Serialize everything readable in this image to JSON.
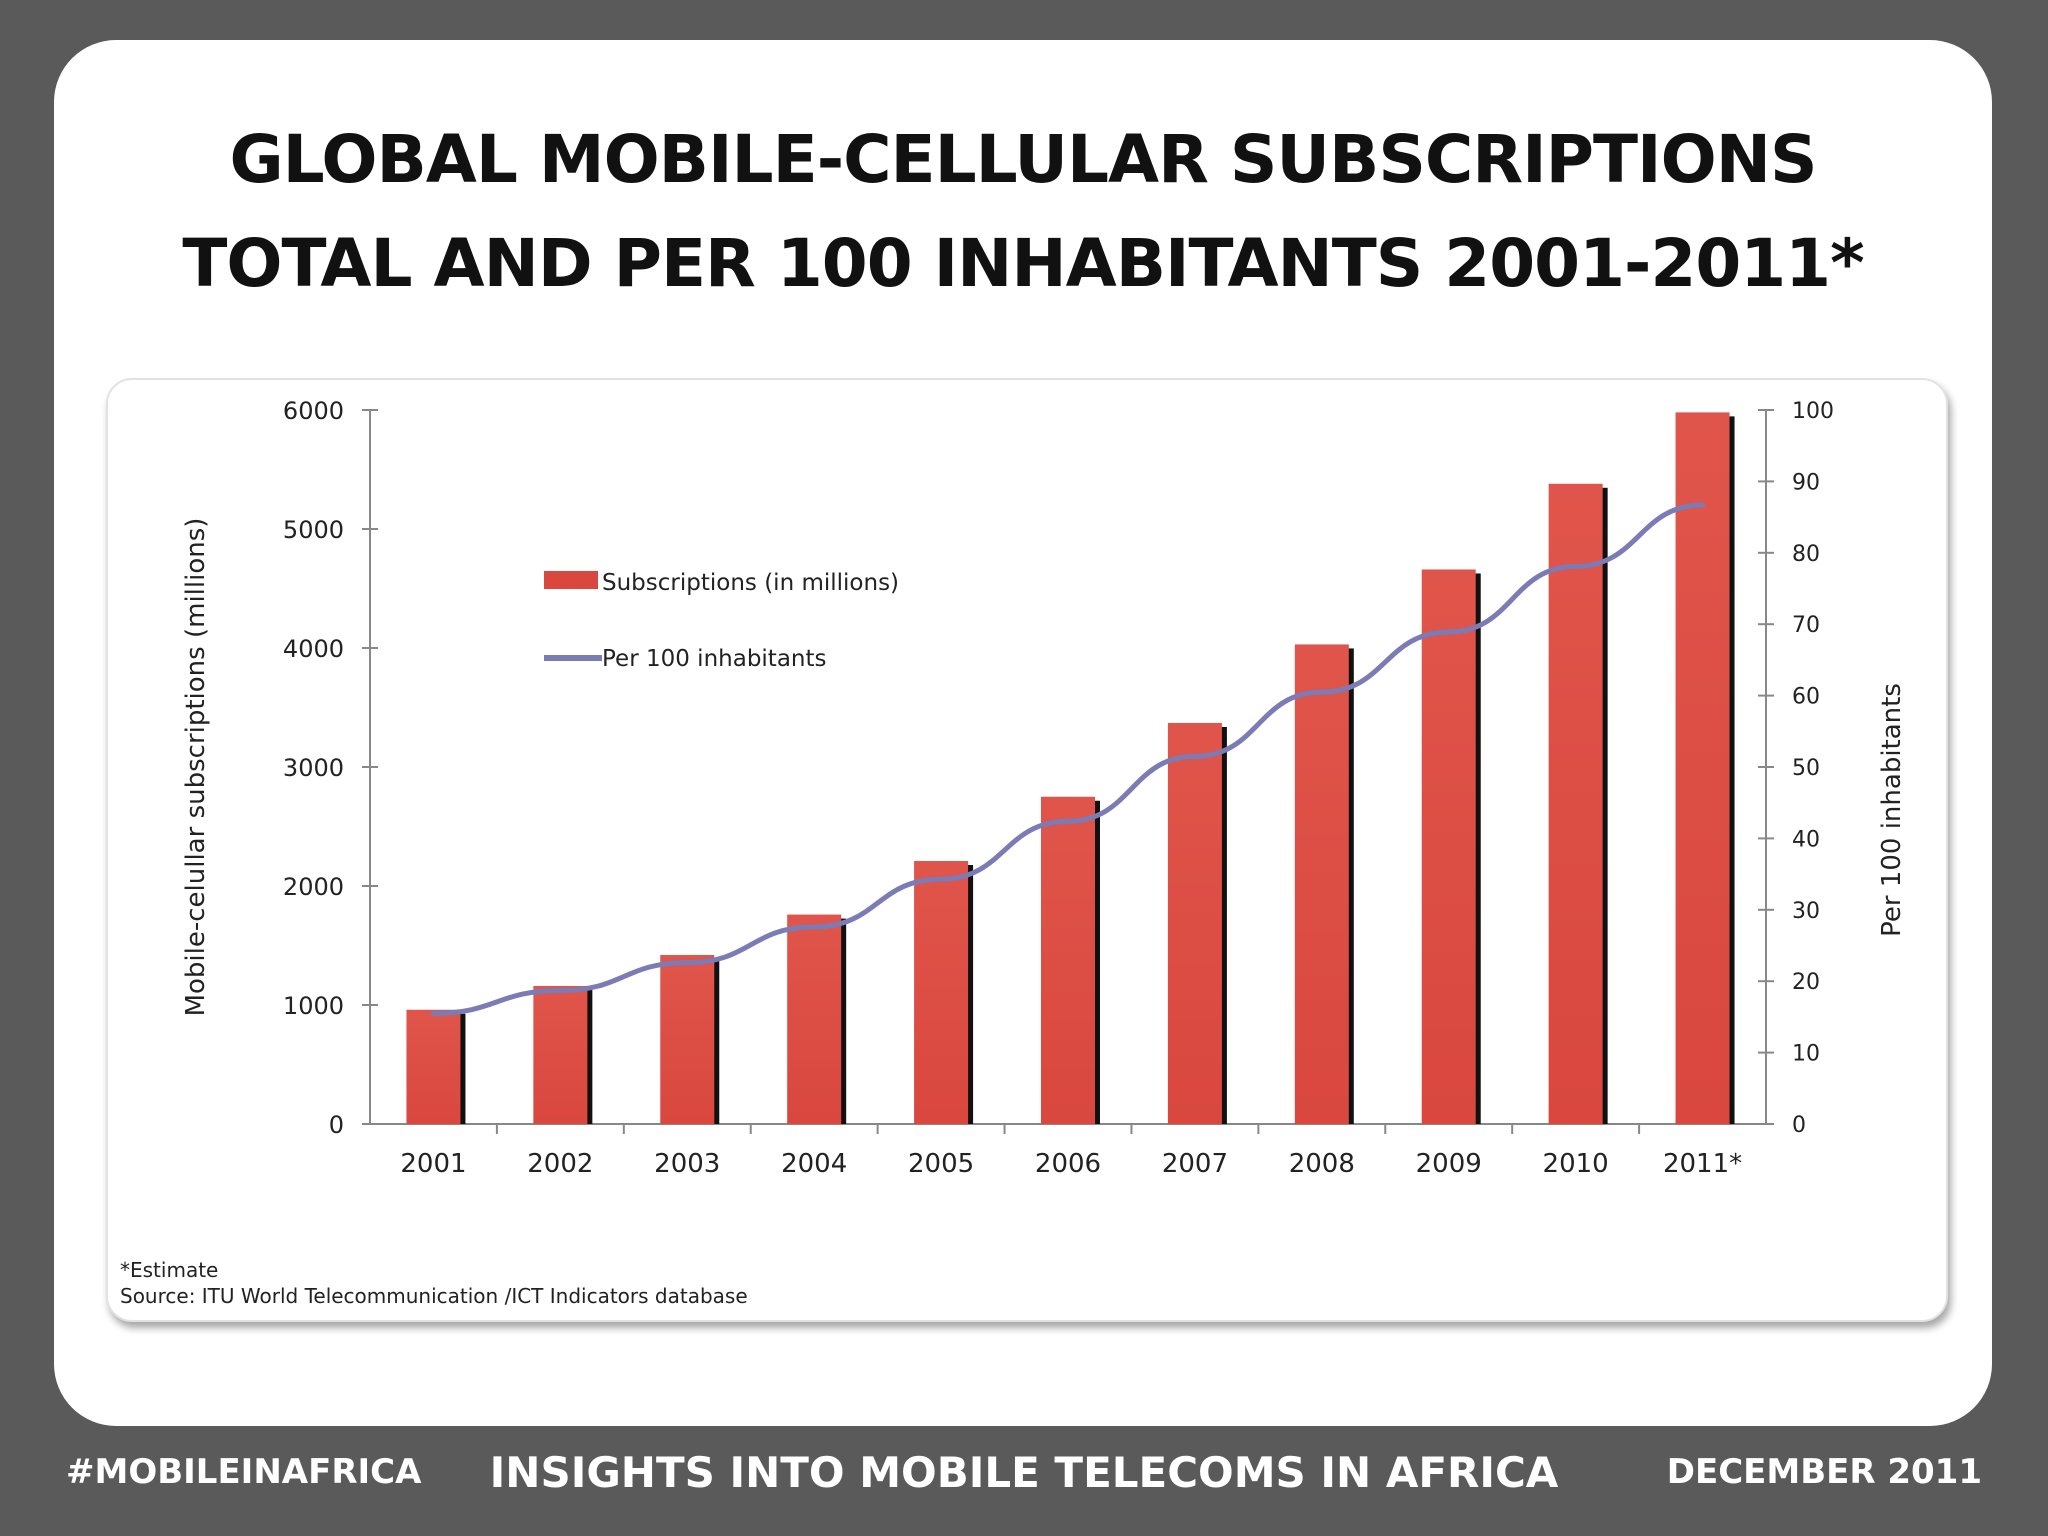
{
  "slide": {
    "title_line1": "GLOBAL MOBILE-CELLULAR SUBSCRIPTIONS",
    "title_line2": "TOTAL AND PER 100 INHABITANTS 2001-2011*"
  },
  "notes": {
    "estimate": "*Estimate",
    "source": "Source:  ITU World Telecommunication /ICT Indicators database"
  },
  "footer": {
    "hashtag": "#MOBILEINAFRICA",
    "center": "INSIGHTS INTO MOBILE TELECOMS IN AFRICA",
    "date": "DECEMBER 2011"
  },
  "colors": {
    "bar": "#d9473e",
    "bar_shadow": "#111111",
    "line": "#7b7bb5",
    "axis": "#888888"
  },
  "chart_data": {
    "type": "bar",
    "categories": [
      "2001",
      "2002",
      "2003",
      "2004",
      "2005",
      "2006",
      "2007",
      "2008",
      "2009",
      "2010",
      "2011*"
    ],
    "series": [
      {
        "name": "Subscriptions (in millions)",
        "type": "bar",
        "axis": "left",
        "values": [
          960,
          1160,
          1420,
          1760,
          2210,
          2750,
          3370,
          4030,
          4660,
          5380,
          5980
        ]
      },
      {
        "name": "Per 100 inhabitants",
        "type": "line",
        "axis": "right",
        "values": [
          15.5,
          18.7,
          22.6,
          27.6,
          34.3,
          42.4,
          51.5,
          60.5,
          68.9,
          78.1,
          86.7
        ]
      }
    ],
    "ylabel": "Mobile-celullar subscriptions  (millions)",
    "y2label": "Per 100 inhabitants",
    "ylim": [
      0,
      6000
    ],
    "y2lim": [
      0,
      100
    ],
    "yticks": [
      0,
      1000,
      2000,
      3000,
      4000,
      5000,
      6000
    ],
    "y2ticks": [
      0,
      10,
      20,
      30,
      40,
      50,
      60,
      70,
      80,
      90,
      100
    ],
    "grid": false,
    "legend_position": "top-left"
  }
}
